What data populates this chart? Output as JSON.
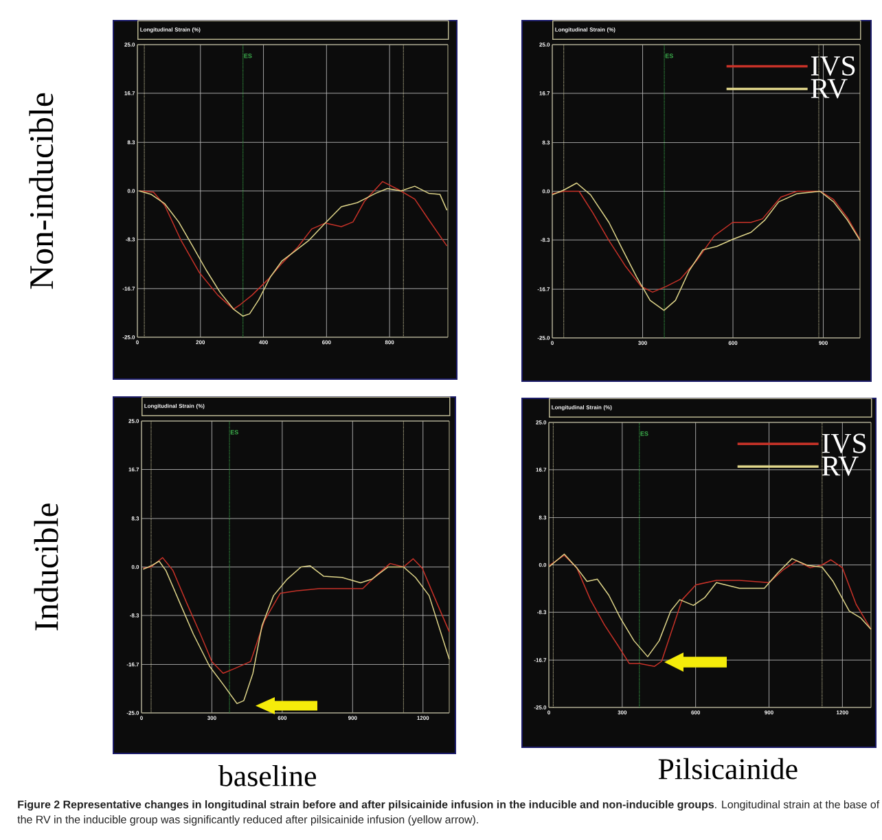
{
  "chart_data": [
    {
      "type": "line",
      "title": "Longitudinal Strain (%)",
      "ylabel": "Non-inducible",
      "xlim": [
        0,
        985
      ],
      "ylim": [
        -25,
        25
      ],
      "xticks": [
        0,
        200,
        400,
        600,
        800
      ],
      "yticks": [
        {
          "value": 25,
          "label": "25.0"
        },
        {
          "value": 16.7,
          "label": "16.7"
        },
        {
          "value": 8.3,
          "label": "8.3"
        },
        {
          "value": 0,
          "label": "0.0"
        },
        {
          "value": -8.3,
          "label": "-8.3"
        },
        {
          "value": -16.7,
          "label": "-16.7"
        },
        {
          "value": -25,
          "label": "-25.0"
        }
      ],
      "grid": true,
      "ref_lines": [
        {
          "axis": "x",
          "value": 22,
          "color": "#c8c39a",
          "line_style": "dotted"
        },
        {
          "axis": "x",
          "value": 335,
          "label": "ES",
          "color": "#3cb04c",
          "line_style": "dotted"
        },
        {
          "axis": "x",
          "value": 844,
          "color": "#c8c39a",
          "line_style": "dotted"
        }
      ],
      "series": [
        {
          "color": "#c83228",
          "x": [
            6,
            51,
            87,
            138,
            196,
            255,
            305,
            327,
            364,
            415,
            458,
            509,
            553,
            596,
            647,
            684,
            720,
            778,
            829,
            880,
            924,
            982
          ],
          "values": [
            0,
            -0.2,
            -2.5,
            -8.4,
            -13.9,
            -17.8,
            -20.2,
            -19.4,
            -17.8,
            -15.1,
            -12.4,
            -9.6,
            -6.5,
            -5.5,
            -6.1,
            -5.3,
            -1.8,
            1.6,
            0.2,
            -1.4,
            -4.9,
            -9.4
          ]
        },
        {
          "color": "#e0d68a",
          "x": [
            6,
            44,
            87,
            131,
            175,
            218,
            262,
            305,
            335,
            356,
            385,
            422,
            458,
            502,
            545,
            596,
            647,
            698,
            720,
            756,
            793,
            836,
            880,
            924,
            960,
            982
          ],
          "values": [
            0,
            -0.6,
            -2.2,
            -5.3,
            -9.4,
            -13.5,
            -17.3,
            -20.2,
            -21.4,
            -21.0,
            -18.6,
            -14.7,
            -12.0,
            -10.2,
            -8.4,
            -5.5,
            -2.7,
            -2.0,
            -1.4,
            -0.4,
            0.4,
            0,
            0.8,
            -0.4,
            -0.6,
            -3.3
          ]
        }
      ]
    },
    {
      "type": "line",
      "title": "Longitudinal Strain (%)",
      "xlim": [
        0,
        1022
      ],
      "ylim": [
        -25,
        25
      ],
      "xticks": [
        0,
        300,
        600,
        900
      ],
      "yticks": [
        {
          "value": 25,
          "label": "25.0"
        },
        {
          "value": 16.7,
          "label": "16.7"
        },
        {
          "value": 8.3,
          "label": "8.3"
        },
        {
          "value": 0,
          "label": "0.0"
        },
        {
          "value": -8.3,
          "label": "-8.3"
        },
        {
          "value": -16.7,
          "label": "-16.7"
        },
        {
          "value": -25,
          "label": "-25.0"
        }
      ],
      "grid": true,
      "legend": "top right",
      "ref_lines": [
        {
          "axis": "x",
          "value": 38,
          "color": "#c8c39a",
          "line_style": "dotted"
        },
        {
          "axis": "x",
          "value": 372,
          "label": "ES",
          "color": "#3cb04c",
          "line_style": "dotted"
        },
        {
          "axis": "x",
          "value": 885,
          "color": "#c8c39a",
          "line_style": "dotted"
        }
      ],
      "series": [
        {
          "name": "IVS",
          "color": "#c83228",
          "x": [
            0,
            38,
            89,
            135,
            188,
            242,
            295,
            333,
            379,
            425,
            478,
            538,
            599,
            660,
            698,
            759,
            813,
            889,
            934,
            980,
            1022
          ],
          "values": [
            -0.4,
            0,
            0,
            -3.7,
            -8.4,
            -12.7,
            -16.2,
            -17.2,
            -16.2,
            -15.0,
            -11.9,
            -7.6,
            -5.3,
            -5.3,
            -4.7,
            -1.0,
            0,
            0,
            -1.4,
            -4.5,
            -8.2
          ]
        },
        {
          "name": "RV",
          "color": "#e0d68a",
          "x": [
            0,
            38,
            81,
            127,
            188,
            234,
            280,
            325,
            371,
            409,
            455,
            500,
            546,
            599,
            660,
            706,
            752,
            813,
            889,
            934,
            980,
            1022
          ],
          "values": [
            -0.6,
            0.2,
            1.4,
            -0.6,
            -5.3,
            -10.0,
            -14.6,
            -18.6,
            -20.3,
            -18.6,
            -13.5,
            -10.0,
            -9.4,
            -8.2,
            -7.0,
            -4.9,
            -1.8,
            -0.4,
            0,
            -1.8,
            -4.9,
            -8.4
          ]
        }
      ]
    },
    {
      "type": "line",
      "title": "Longitudinal Strain (%)",
      "ylabel": "Inducible",
      "xlabel": "baseline",
      "xlim": [
        0,
        1312
      ],
      "ylim": [
        -25,
        25
      ],
      "xticks": [
        0,
        300,
        600,
        900,
        1200
      ],
      "yticks": [
        {
          "value": 25,
          "label": "25.0"
        },
        {
          "value": 16.7,
          "label": "16.7"
        },
        {
          "value": 8.3,
          "label": "8.3"
        },
        {
          "value": 0,
          "label": "0.0"
        },
        {
          "value": -8.3,
          "label": "-8.3"
        },
        {
          "value": -16.7,
          "label": "-16.7"
        },
        {
          "value": -25,
          "label": "-25.0"
        }
      ],
      "grid": true,
      "ref_lines": [
        {
          "axis": "x",
          "value": 41,
          "color": "#c8c39a",
          "line_style": "dotted"
        },
        {
          "axis": "x",
          "value": 375,
          "label": "ES",
          "color": "#3cb04c",
          "line_style": "dotted"
        },
        {
          "axis": "x",
          "value": 1117,
          "color": "#c8c39a",
          "line_style": "dotted"
        }
      ],
      "series": [
        {
          "color": "#c83228",
          "x": [
            7,
            41,
            90,
            134,
            192,
            251,
            300,
            348,
            397,
            465,
            524,
            592,
            660,
            758,
            943,
            1002,
            1060,
            1117,
            1158,
            1197,
            1246,
            1312
          ],
          "values": [
            -0.2,
            0,
            1.6,
            -0.6,
            -6.1,
            -11.5,
            -16.2,
            -18.2,
            -17.4,
            -16.2,
            -9.2,
            -4.5,
            -4.1,
            -3.7,
            -3.7,
            -1.4,
            0.6,
            0,
            1.4,
            -0.2,
            -4.9,
            -11.1
          ]
        },
        {
          "color": "#e0d68a",
          "x": [
            7,
            41,
            75,
            104,
            163,
            221,
            290,
            348,
            407,
            436,
            475,
            514,
            563,
            621,
            680,
            719,
            777,
            855,
            934,
            982,
            1051,
            1117,
            1168,
            1226,
            1312
          ],
          "values": [
            -0.4,
            0.2,
            1.0,
            -0.6,
            -6.1,
            -11.5,
            -17.0,
            -20.1,
            -23.4,
            -22.9,
            -18.2,
            -10.0,
            -4.9,
            -2.1,
            0,
            0.2,
            -1.6,
            -1.8,
            -2.7,
            -2.1,
            0,
            0,
            -1.8,
            -4.9,
            -15.8
          ]
        }
      ]
    },
    {
      "type": "line",
      "title": "Longitudinal Strain (%)",
      "xlabel": "Pilsicainide",
      "xlim": [
        0,
        1317
      ],
      "ylim": [
        -25,
        25
      ],
      "xticks": [
        0,
        300,
        600,
        900,
        1200
      ],
      "yticks": [
        {
          "value": 25,
          "label": "25.0"
        },
        {
          "value": 16.7,
          "label": "16.7"
        },
        {
          "value": 8.3,
          "label": "8.3"
        },
        {
          "value": 0,
          "label": "0.0"
        },
        {
          "value": -8.3,
          "label": "-8.3"
        },
        {
          "value": -16.7,
          "label": "-16.7"
        },
        {
          "value": -25,
          "label": "-25.0"
        }
      ],
      "grid": true,
      "legend": "top right",
      "ref_lines": [
        {
          "axis": "x",
          "value": 18,
          "color": "#c8c39a",
          "line_style": "dotted"
        },
        {
          "axis": "x",
          "value": 370,
          "label": "ES",
          "color": "#3cb04c",
          "line_style": "dotted"
        },
        {
          "axis": "x",
          "value": 1117,
          "color": "#c8c39a",
          "line_style": "dotted"
        }
      ],
      "series": [
        {
          "name": "IVS",
          "color": "#c83228",
          "x": [
            2,
            63,
            114,
            170,
            227,
            282,
            329,
            370,
            432,
            461,
            498,
            545,
            601,
            685,
            779,
            900,
            957,
            1013,
            1069,
            1117,
            1153,
            1200,
            1256,
            1317
          ],
          "values": [
            -0.1,
            1.7,
            -0.5,
            -6.1,
            -10.5,
            -14.1,
            -17.3,
            -17.3,
            -17.8,
            -16.9,
            -12.1,
            -6.1,
            -3.5,
            -2.7,
            -2.7,
            -3.1,
            -0.9,
            0.7,
            -0.5,
            0,
            0.9,
            -0.5,
            -6.9,
            -11.3
          ]
        },
        {
          "name": "RV",
          "color": "#e0d68a",
          "x": [
            2,
            63,
            114,
            156,
            198,
            245,
            292,
            348,
            404,
            451,
            498,
            535,
            591,
            638,
            685,
            779,
            881,
            938,
            994,
            1059,
            1117,
            1162,
            1228,
            1275,
            1317
          ],
          "values": [
            -0.3,
            1.9,
            -0.5,
            -2.9,
            -2.5,
            -5.3,
            -9.3,
            -13.3,
            -16.1,
            -13.3,
            -8.1,
            -6.1,
            -7.1,
            -5.7,
            -3.1,
            -4.1,
            -4.1,
            -1.3,
            1.1,
            -0.1,
            -0.4,
            -2.9,
            -8.1,
            -9.3,
            -11.3
          ]
        }
      ],
      "annotations": [
        "**Figure 2 Representative changes in longitudinal strain before and after pilsicainide infusion in the inducible and non-inducible groups**. Longitudinal strain at the base of the RV in the inducible group was significantly reduced after pilsicainide infusion (yellow arrow)."
      ]
    }
  ]
}
